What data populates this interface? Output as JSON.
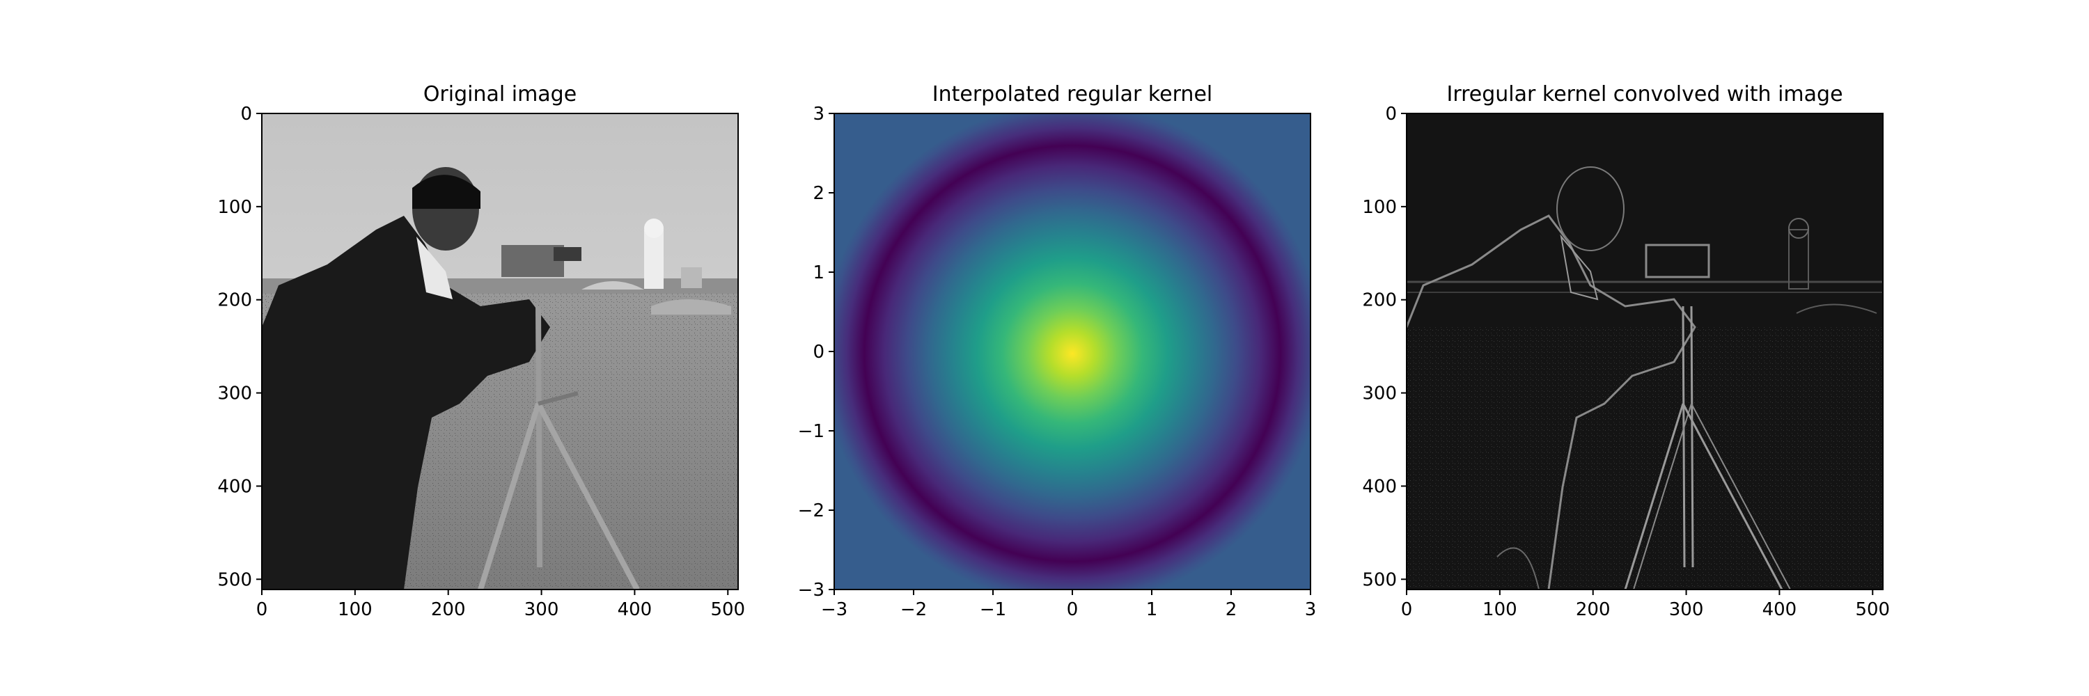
{
  "chart_data": [
    {
      "type": "image",
      "title": "Original image",
      "xlim": [
        0,
        511
      ],
      "ylim": [
        511,
        0
      ],
      "xticks": [
        0,
        100,
        200,
        300,
        400,
        500
      ],
      "yticks": [
        0,
        100,
        200,
        300,
        400,
        500
      ],
      "colormap": "gray",
      "content": "grayscale photograph"
    },
    {
      "type": "heatmap",
      "title": "Interpolated regular kernel",
      "xlim": [
        -3,
        3
      ],
      "ylim": [
        -3,
        3
      ],
      "xticks": [
        -3,
        -2,
        -1,
        0,
        1,
        2,
        3
      ],
      "yticks": [
        -3,
        -2,
        -1,
        0,
        1,
        2,
        3
      ],
      "colormap": "viridis",
      "z_function": "radially symmetric kernel, maximum at origin, minimum ring near r = 1.8",
      "center_value": 1.0,
      "ring_min_value": 0.0,
      "edge_value": 0.3
    },
    {
      "type": "image",
      "title": "Irregular kernel convolved with image",
      "xlim": [
        0,
        511
      ],
      "ylim": [
        511,
        0
      ],
      "xticks": [
        0,
        100,
        200,
        300,
        400,
        500
      ],
      "yticks": [
        0,
        100,
        200,
        300,
        400,
        500
      ],
      "colormap": "gray",
      "content": "dark edge-response image"
    }
  ],
  "colors": {
    "viridis_low": "#440154",
    "viridis_high": "#fde725",
    "axes": "#000000",
    "photo_sky": "#cfcfcf",
    "edge_bg": "#141414"
  }
}
